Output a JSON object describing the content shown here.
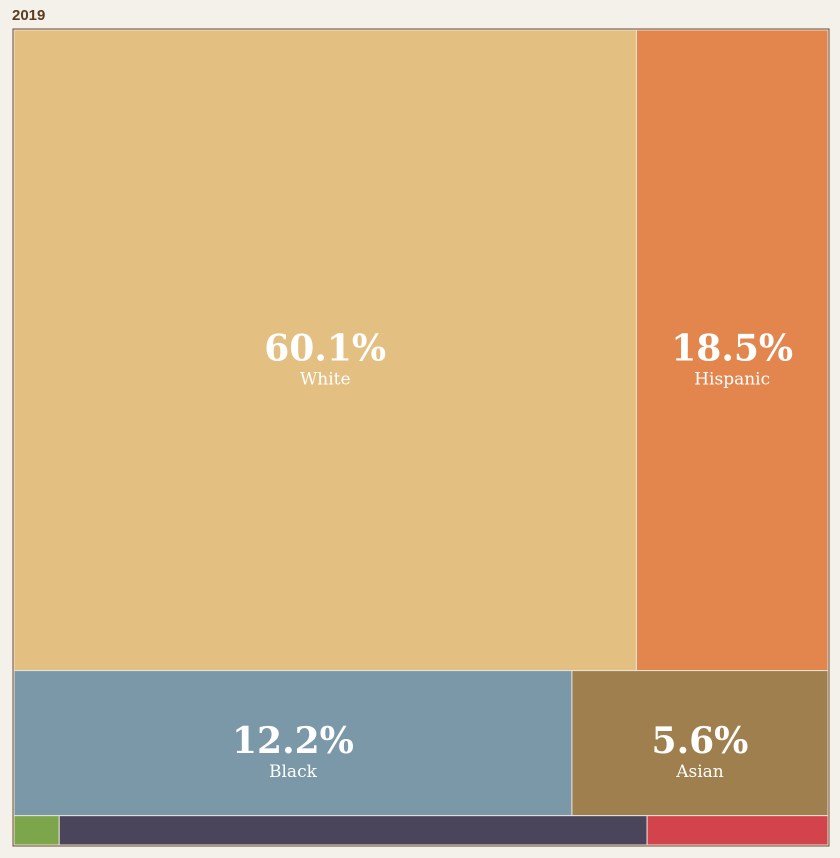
{
  "chart_data": {
    "type": "treemap",
    "title": "2019",
    "categories": [
      "White",
      "Hispanic",
      "Black",
      "Asian",
      null,
      null,
      null
    ],
    "values": [
      60.1,
      18.5,
      12.2,
      5.6,
      0.2,
      2.6,
      0.8
    ],
    "value_labels": [
      "60.1%",
      "18.5%",
      "12.2%",
      "5.6%",
      null,
      null,
      null
    ],
    "colors": [
      "#e3c081",
      "#e2864e",
      "#7b98a9",
      "#a07f4f",
      "#7da54a",
      "#4b455c",
      "#d2434b"
    ]
  }
}
